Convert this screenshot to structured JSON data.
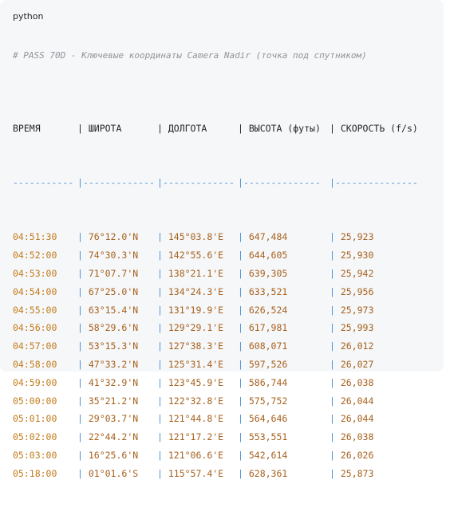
{
  "code_language": "python",
  "comment": "# PASS 70D - Ключевые координаты Camera Nadir (точка под спутником)",
  "headers": [
    "ВРЕМЯ",
    "ШИРОТА",
    "ДОЛГОТА",
    "ВЫСОТА (футы)",
    "СКОРОСТЬ (f/s)"
  ],
  "separator": [
    "-----------",
    "-------------",
    "-------------",
    "--------------",
    "---------------"
  ],
  "rows": [
    [
      "04:51:30",
      "76°12.0'N",
      "145°03.8'E",
      "647,484",
      "25,923"
    ],
    [
      "04:52:00",
      "74°30.3'N",
      "142°55.6'E",
      "644,605",
      "25,930"
    ],
    [
      "04:53:00",
      "71°07.7'N",
      "138°21.1'E",
      "639,305",
      "25,942"
    ],
    [
      "04:54:00",
      "67°25.0'N",
      "134°24.3'E",
      "633,521",
      "25,956"
    ],
    [
      "04:55:00",
      "63°15.4'N",
      "131°19.9'E",
      "626,524",
      "25,973"
    ],
    [
      "04:56:00",
      "58°29.6'N",
      "129°29.1'E",
      "617,981",
      "25,993"
    ],
    [
      "04:57:00",
      "53°15.3'N",
      "127°38.3'E",
      "608,071",
      "26,012"
    ],
    [
      "04:58:00",
      "47°33.2'N",
      "125°31.4'E",
      "597,526",
      "26,027"
    ],
    [
      "04:59:00",
      "41°32.9'N",
      "123°45.9'E",
      "586,744",
      "26,038"
    ],
    [
      "05:00:00",
      "35°21.2'N",
      "122°32.8'E",
      "575,752",
      "26,044"
    ],
    [
      "05:01:00",
      "29°03.7'N",
      "121°44.8'E",
      "564,646",
      "26,044"
    ],
    [
      "05:02:00",
      "22°44.2'N",
      "121°17.2'E",
      "553,551",
      "26,038"
    ],
    [
      "05:03:00",
      "16°25.6'N",
      "121°06.6'E",
      "542,614",
      "26,026"
    ],
    [
      "05:18:00",
      "01°01.6'S",
      "115°57.4'E",
      "628,361",
      "25,873"
    ]
  ]
}
